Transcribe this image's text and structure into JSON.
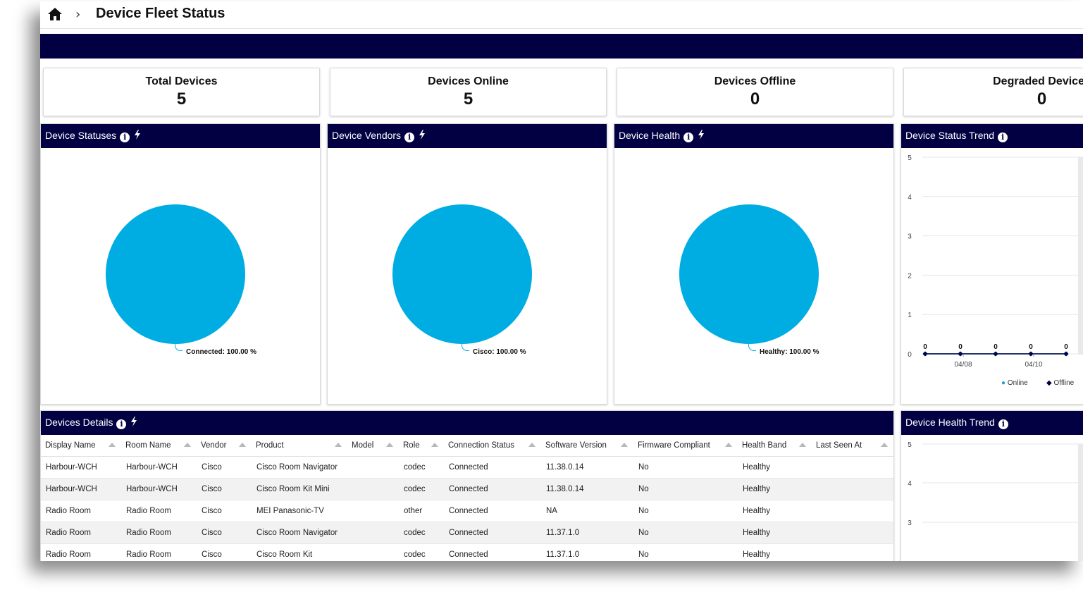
{
  "breadcrumb": {
    "title": "Device Fleet Status"
  },
  "stats": [
    {
      "label": "Total Devices",
      "value": "5"
    },
    {
      "label": "Devices Online",
      "value": "5"
    },
    {
      "label": "Devices Offline",
      "value": "0"
    },
    {
      "label": "Degraded Devices",
      "value": "0"
    }
  ],
  "panels": {
    "statuses": {
      "title": "Device Statuses",
      "slice_label": "Connected: 100.00 %"
    },
    "vendors": {
      "title": "Device Vendors",
      "slice_label": "Cisco: 100.00 %"
    },
    "health": {
      "title": "Device Health",
      "slice_label": "Healthy: 100.00 %"
    },
    "status_trend": {
      "title": "Device Status Trend"
    },
    "details": {
      "title": "Devices Details"
    },
    "health_trend": {
      "title": "Device Health Trend"
    }
  },
  "chart_data": [
    {
      "type": "pie",
      "title": "Device Statuses",
      "labels": [
        "Connected"
      ],
      "values": [
        100.0
      ],
      "color": "#00ade3"
    },
    {
      "type": "pie",
      "title": "Device Vendors",
      "labels": [
        "Cisco"
      ],
      "values": [
        100.0
      ],
      "color": "#00ade3"
    },
    {
      "type": "pie",
      "title": "Device Health",
      "labels": [
        "Healthy"
      ],
      "values": [
        100.0
      ],
      "color": "#00ade3"
    },
    {
      "type": "line",
      "title": "Device Status Trend",
      "y_ticks": [
        "0",
        "1",
        "2",
        "3",
        "4",
        "5"
      ],
      "ylim": [
        0,
        5
      ],
      "x_tick_labels": [
        "04/08",
        "04/10"
      ],
      "point_labels": [
        "0",
        "0",
        "0",
        "0",
        "0"
      ],
      "series": [
        {
          "name": "Online",
          "values": [
            0,
            0,
            0,
            0,
            0
          ],
          "color": "#1e9fd6"
        },
        {
          "name": "Offline",
          "values": [
            0,
            0,
            0,
            0,
            0
          ],
          "color": "#020043"
        }
      ],
      "legend": "bottom-right"
    },
    {
      "type": "line",
      "title": "Device Health Trend",
      "y_ticks": [
        "3",
        "4",
        "5"
      ]
    }
  ],
  "table": {
    "columns": [
      "Display Name",
      "Room Name",
      "Vendor",
      "Product",
      "Model",
      "Role",
      "Connection Status",
      "Software Version",
      "Firmware Compliant",
      "Health Band",
      "Last Seen At"
    ],
    "rows": [
      [
        "Harbour-WCH",
        "Harbour-WCH",
        "Cisco",
        "Cisco Room Navigator",
        "",
        "codec",
        "Connected",
        "11.38.0.14",
        "No",
        "Healthy",
        ""
      ],
      [
        "Harbour-WCH",
        "Harbour-WCH",
        "Cisco",
        "Cisco Room Kit Mini",
        "",
        "codec",
        "Connected",
        "11.38.0.14",
        "No",
        "Healthy",
        ""
      ],
      [
        "Radio Room",
        "Radio Room",
        "Cisco",
        "MEI Panasonic-TV",
        "",
        "other",
        "Connected",
        "NA",
        "No",
        "Healthy",
        ""
      ],
      [
        "Radio Room",
        "Radio Room",
        "Cisco",
        "Cisco Room Navigator",
        "",
        "codec",
        "Connected",
        "11.37.1.0",
        "No",
        "Healthy",
        ""
      ],
      [
        "Radio Room",
        "Radio Room",
        "Cisco",
        "Cisco Room Kit",
        "",
        "codec",
        "Connected",
        "11.37.1.0",
        "No",
        "Healthy",
        ""
      ]
    ]
  },
  "colors": {
    "navy": "#020043",
    "pie": "#00ade3",
    "online": "#1e9fd6"
  },
  "icons": [
    "home-icon",
    "chevron-right-icon",
    "info-icon",
    "bolt-icon",
    "sort-arrow-icon"
  ]
}
